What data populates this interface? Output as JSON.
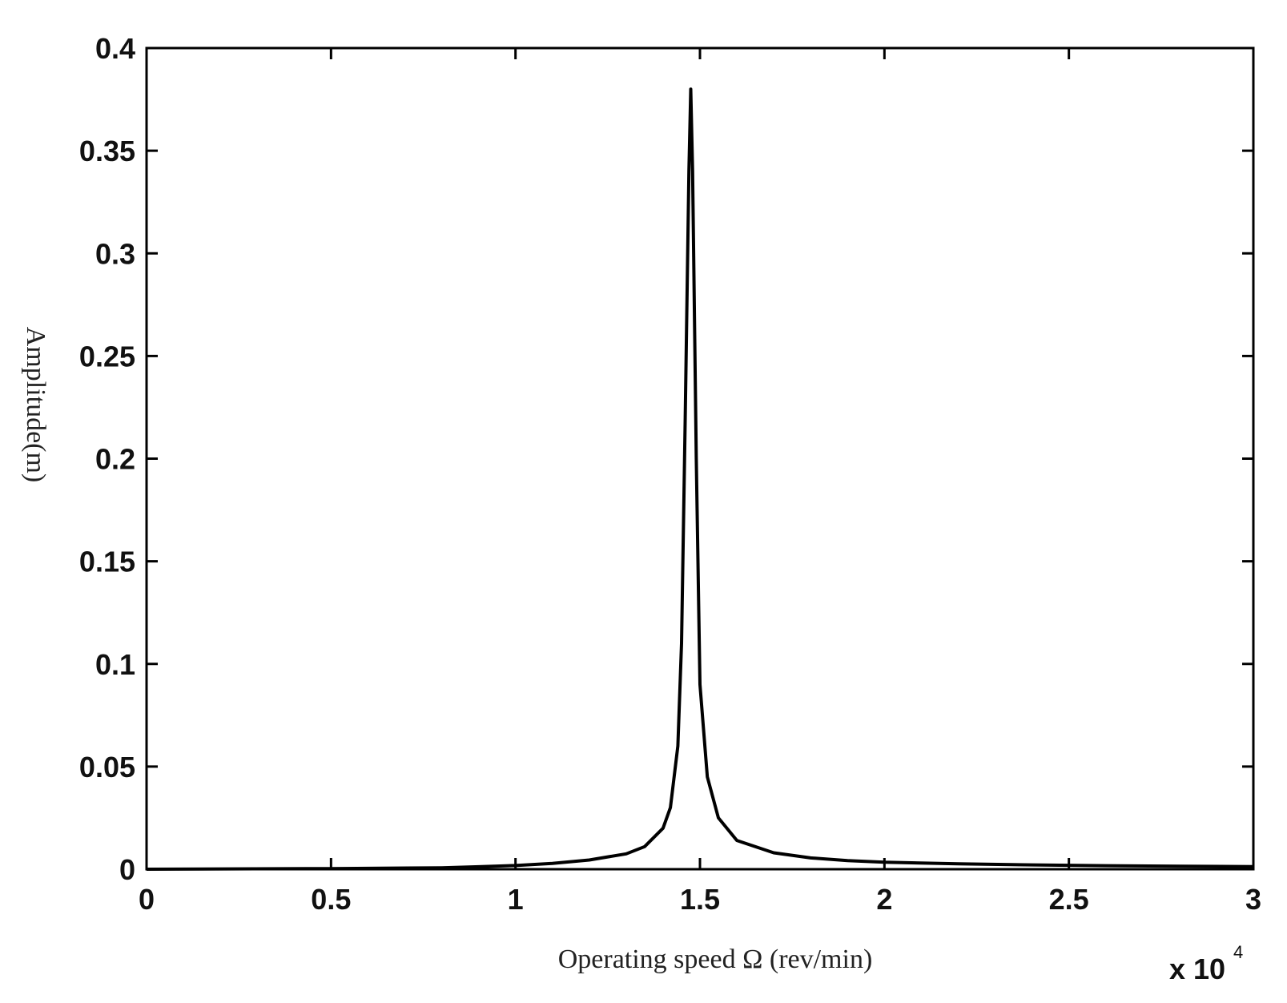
{
  "chart_data": {
    "type": "line",
    "title": "",
    "xlabel": "Operating speed Ω (rev/min)",
    "ylabel": "Amplitude(m)",
    "x_multiplier_label": "x 10",
    "x_multiplier_exponent": "4",
    "xlim": [
      0,
      3
    ],
    "ylim": [
      0,
      0.4
    ],
    "xticks": [
      0,
      0.5,
      1,
      1.5,
      2,
      2.5,
      3
    ],
    "xtick_labels": [
      "0",
      "0.5",
      "1",
      "1.5",
      "2",
      "2.5",
      "3"
    ],
    "yticks": [
      0,
      0.05,
      0.1,
      0.15,
      0.2,
      0.25,
      0.3,
      0.35,
      0.4
    ],
    "ytick_labels": [
      "0",
      "0.05",
      "0.1",
      "0.15",
      "0.2",
      "0.25",
      "0.3",
      "0.35",
      "0.4"
    ],
    "grid": false,
    "series": [
      {
        "color": "#000000",
        "x": [
          0,
          0.5,
          0.8,
          0.9,
          1.0,
          1.1,
          1.2,
          1.3,
          1.35,
          1.4,
          1.42,
          1.44,
          1.45,
          1.46,
          1.47,
          1.475,
          1.48,
          1.49,
          1.5,
          1.52,
          1.55,
          1.6,
          1.7,
          1.8,
          1.9,
          2.0,
          2.2,
          2.4,
          2.6,
          2.8,
          3.0
        ],
        "y": [
          0,
          0.0003,
          0.0007,
          0.0012,
          0.0018,
          0.0028,
          0.0045,
          0.0075,
          0.011,
          0.02,
          0.03,
          0.06,
          0.11,
          0.22,
          0.34,
          0.38,
          0.34,
          0.2,
          0.09,
          0.045,
          0.025,
          0.014,
          0.008,
          0.0055,
          0.0042,
          0.0034,
          0.0026,
          0.0021,
          0.0017,
          0.0015,
          0.0013
        ]
      }
    ]
  }
}
